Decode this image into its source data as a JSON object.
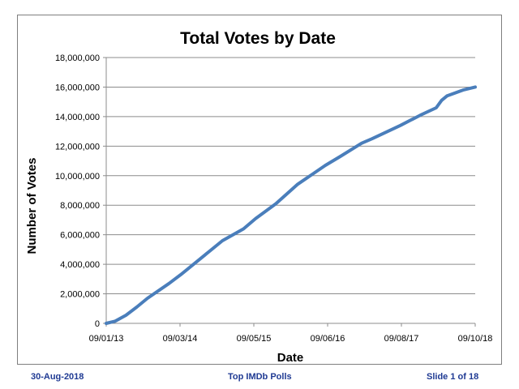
{
  "chart_data": {
    "type": "line",
    "title": "Total Votes by Date",
    "xlabel": "Date",
    "ylabel": "Number of Votes",
    "x_tick_labels": [
      "09/01/13",
      "09/03/14",
      "09/05/15",
      "09/06/16",
      "09/08/17",
      "09/10/18"
    ],
    "y_tick_labels": [
      "0",
      "2,000,000",
      "4,000,000",
      "6,000,000",
      "8,000,000",
      "10,000,000",
      "12,000,000",
      "14,000,000",
      "16,000,000",
      "18,000,000"
    ],
    "ylim": [
      0,
      18000000
    ],
    "grid": "horizontal",
    "legend": "none",
    "line_color": "#4a7ebb",
    "series": [
      {
        "x": [
          "2013-01-09",
          "2013-03-01",
          "2013-05-01",
          "2013-07-01",
          "2013-09-01",
          "2014-01-01",
          "2014-03-09",
          "2014-07-01",
          "2014-11-01",
          "2015-03-01",
          "2015-05-09",
          "2015-09-01",
          "2016-01-01",
          "2016-06-09",
          "2016-09-01",
          "2017-01-01",
          "2017-03-01",
          "2017-08-09",
          "2017-12-01",
          "2018-03-01",
          "2018-04-01",
          "2018-05-01",
          "2018-08-01",
          "2018-10-09"
        ],
        "y": [
          0,
          150000,
          550000,
          1100000,
          1700000,
          2700000,
          3300000,
          4400000,
          5600000,
          6400000,
          7100000,
          8100000,
          9400000,
          10700000,
          11300000,
          12200000,
          12500000,
          13400000,
          14100000,
          14600000,
          15100000,
          15400000,
          15800000,
          16000000
        ]
      }
    ]
  },
  "footer": {
    "date": "30-Aug-2018",
    "center": "Top IMDb Polls",
    "slide": "Slide 1 of 18"
  }
}
